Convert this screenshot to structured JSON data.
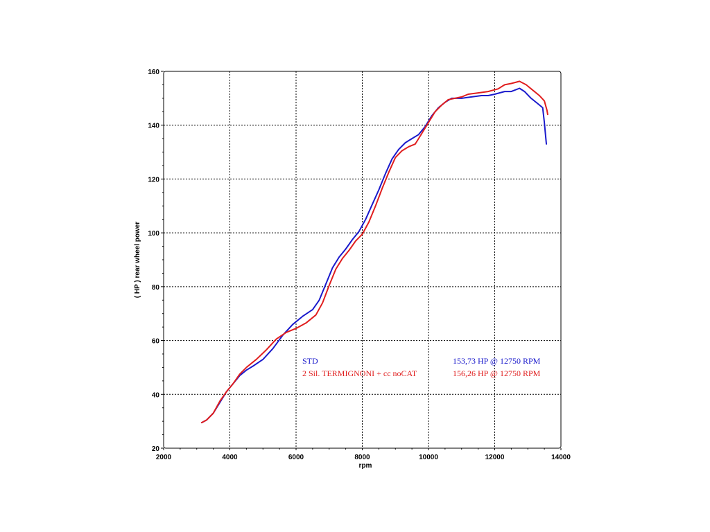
{
  "chart_data": {
    "type": "line",
    "xlabel": "rpm",
    "ylabel": "( HP )  rear wheel power",
    "xlim": [
      2000,
      14000
    ],
    "ylim": [
      20,
      160
    ],
    "x_ticks": [
      "2000",
      "4000",
      "6000",
      "8000",
      "10000",
      "12000",
      "14000"
    ],
    "y_ticks": [
      "20",
      "40",
      "60",
      "80",
      "100",
      "120",
      "140",
      "160"
    ],
    "grid": true,
    "series": [
      {
        "name": "STD",
        "color": "#1a1acc",
        "annotation": "153,73 HP @ 12750 RPM",
        "points": [
          [
            3150,
            29.5
          ],
          [
            3300,
            30.5
          ],
          [
            3500,
            33
          ],
          [
            3700,
            37
          ],
          [
            3900,
            41
          ],
          [
            4100,
            44
          ],
          [
            4300,
            47
          ],
          [
            4500,
            49
          ],
          [
            4700,
            50.5
          ],
          [
            5000,
            53
          ],
          [
            5300,
            57
          ],
          [
            5600,
            62
          ],
          [
            5900,
            66
          ],
          [
            6200,
            69
          ],
          [
            6500,
            71.5
          ],
          [
            6700,
            75
          ],
          [
            6900,
            81
          ],
          [
            7100,
            87
          ],
          [
            7300,
            91
          ],
          [
            7500,
            94
          ],
          [
            7700,
            97.5
          ],
          [
            7900,
            100.5
          ],
          [
            8100,
            105
          ],
          [
            8300,
            110.5
          ],
          [
            8500,
            116
          ],
          [
            8700,
            122
          ],
          [
            8900,
            127.5
          ],
          [
            9100,
            131
          ],
          [
            9300,
            133.5
          ],
          [
            9500,
            135
          ],
          [
            9700,
            136.5
          ],
          [
            9900,
            139.5
          ],
          [
            10100,
            143.5
          ],
          [
            10300,
            146.5
          ],
          [
            10500,
            148.5
          ],
          [
            10700,
            150
          ],
          [
            11000,
            150
          ],
          [
            11300,
            150.5
          ],
          [
            11600,
            151
          ],
          [
            11800,
            151
          ],
          [
            12000,
            151.5
          ],
          [
            12300,
            152.5
          ],
          [
            12500,
            152.5
          ],
          [
            12750,
            153.7
          ],
          [
            12900,
            152.5
          ],
          [
            13100,
            150
          ],
          [
            13300,
            148
          ],
          [
            13450,
            146.5
          ],
          [
            13500,
            141
          ],
          [
            13560,
            133
          ]
        ]
      },
      {
        "name": "2 Sil. TERMIGNONI + cc noCAT",
        "color": "#e01e1e",
        "annotation": "156,26 HP @ 12750 RPM",
        "points": [
          [
            3150,
            29.5
          ],
          [
            3300,
            30.5
          ],
          [
            3500,
            33
          ],
          [
            3700,
            37.5
          ],
          [
            3900,
            41
          ],
          [
            4100,
            44
          ],
          [
            4300,
            47.5
          ],
          [
            4500,
            50
          ],
          [
            4800,
            53
          ],
          [
            5100,
            56.5
          ],
          [
            5400,
            60.5
          ],
          [
            5700,
            63
          ],
          [
            6000,
            64.5
          ],
          [
            6300,
            66.5
          ],
          [
            6600,
            69.5
          ],
          [
            6800,
            74
          ],
          [
            7000,
            80.5
          ],
          [
            7200,
            86.5
          ],
          [
            7400,
            90.5
          ],
          [
            7600,
            93.5
          ],
          [
            7800,
            97
          ],
          [
            8000,
            99.5
          ],
          [
            8200,
            104
          ],
          [
            8400,
            110
          ],
          [
            8600,
            116.5
          ],
          [
            8800,
            122.5
          ],
          [
            9000,
            128
          ],
          [
            9200,
            130.5
          ],
          [
            9400,
            132
          ],
          [
            9600,
            133
          ],
          [
            9800,
            137
          ],
          [
            10000,
            141
          ],
          [
            10200,
            145
          ],
          [
            10400,
            147.5
          ],
          [
            10600,
            149.5
          ],
          [
            10800,
            150
          ],
          [
            11000,
            150.5
          ],
          [
            11200,
            151.5
          ],
          [
            11500,
            152
          ],
          [
            11800,
            152.5
          ],
          [
            12100,
            153.5
          ],
          [
            12300,
            155
          ],
          [
            12500,
            155.5
          ],
          [
            12750,
            156.3
          ],
          [
            12950,
            155
          ],
          [
            13150,
            153
          ],
          [
            13350,
            151
          ],
          [
            13500,
            149
          ],
          [
            13580,
            145.5
          ],
          [
            13600,
            144
          ]
        ]
      }
    ]
  }
}
